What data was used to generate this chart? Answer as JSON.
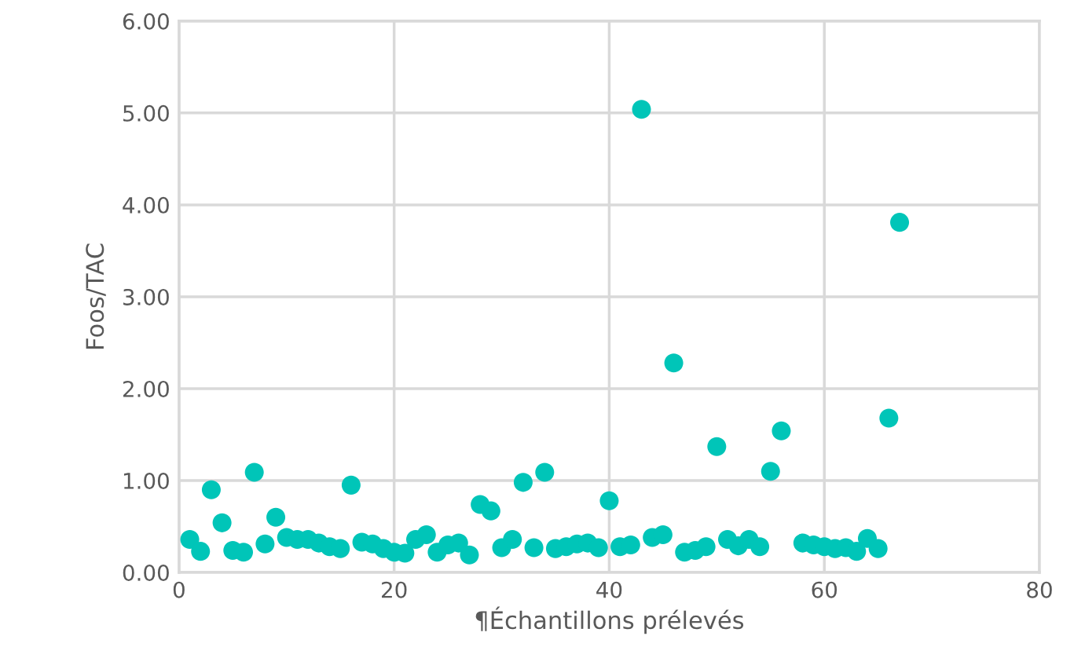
{
  "chart_data": {
    "type": "scatter",
    "xlabel": "¶Échantillons prélevés",
    "ylabel": "Foos/TAC",
    "x": [
      1,
      2,
      3,
      4,
      5,
      6,
      7,
      8,
      9,
      10,
      11,
      12,
      13,
      14,
      15,
      16,
      17,
      18,
      19,
      20,
      21,
      22,
      23,
      24,
      25,
      26,
      27,
      28,
      29,
      30,
      31,
      32,
      33,
      34,
      35,
      36,
      37,
      38,
      39,
      40,
      41,
      42,
      43,
      44,
      45,
      46,
      47,
      48,
      49,
      50,
      51,
      52,
      53,
      54,
      55,
      56,
      58,
      59,
      60,
      61,
      62,
      63,
      64,
      65,
      66,
      67
    ],
    "values": [
      0.36,
      0.23,
      0.9,
      0.54,
      0.24,
      0.22,
      1.09,
      0.31,
      0.6,
      0.38,
      0.36,
      0.36,
      0.32,
      0.28,
      0.26,
      0.95,
      0.33,
      0.31,
      0.26,
      0.22,
      0.21,
      0.36,
      0.41,
      0.22,
      0.3,
      0.32,
      0.19,
      0.74,
      0.67,
      0.27,
      0.36,
      0.98,
      0.27,
      1.09,
      0.26,
      0.28,
      0.31,
      0.32,
      0.27,
      0.78,
      0.28,
      0.3,
      5.04,
      0.38,
      0.41,
      2.28,
      0.22,
      0.24,
      0.28,
      1.37,
      0.36,
      0.29,
      0.36,
      0.28,
      1.1,
      1.54,
      0.32,
      0.3,
      0.28,
      0.26,
      0.27,
      0.23,
      0.37,
      0.26,
      1.68,
      3.81
    ],
    "color": "#00c5b8",
    "marker": "circle",
    "grid": true,
    "legend": false,
    "xlim": [
      0,
      80
    ],
    "xticks": [
      0,
      20,
      40,
      60,
      80
    ],
    "ylim": [
      0,
      6
    ],
    "yticks": [
      {
        "value": 0,
        "label": "0.00"
      },
      {
        "value": 1,
        "label": "1.00"
      },
      {
        "value": 2,
        "label": "2.00"
      },
      {
        "value": 3,
        "label": "3.00"
      },
      {
        "value": 4,
        "label": "4.00"
      },
      {
        "value": 5,
        "label": "5.00"
      },
      {
        "value": 6,
        "label": "6.00"
      }
    ]
  }
}
